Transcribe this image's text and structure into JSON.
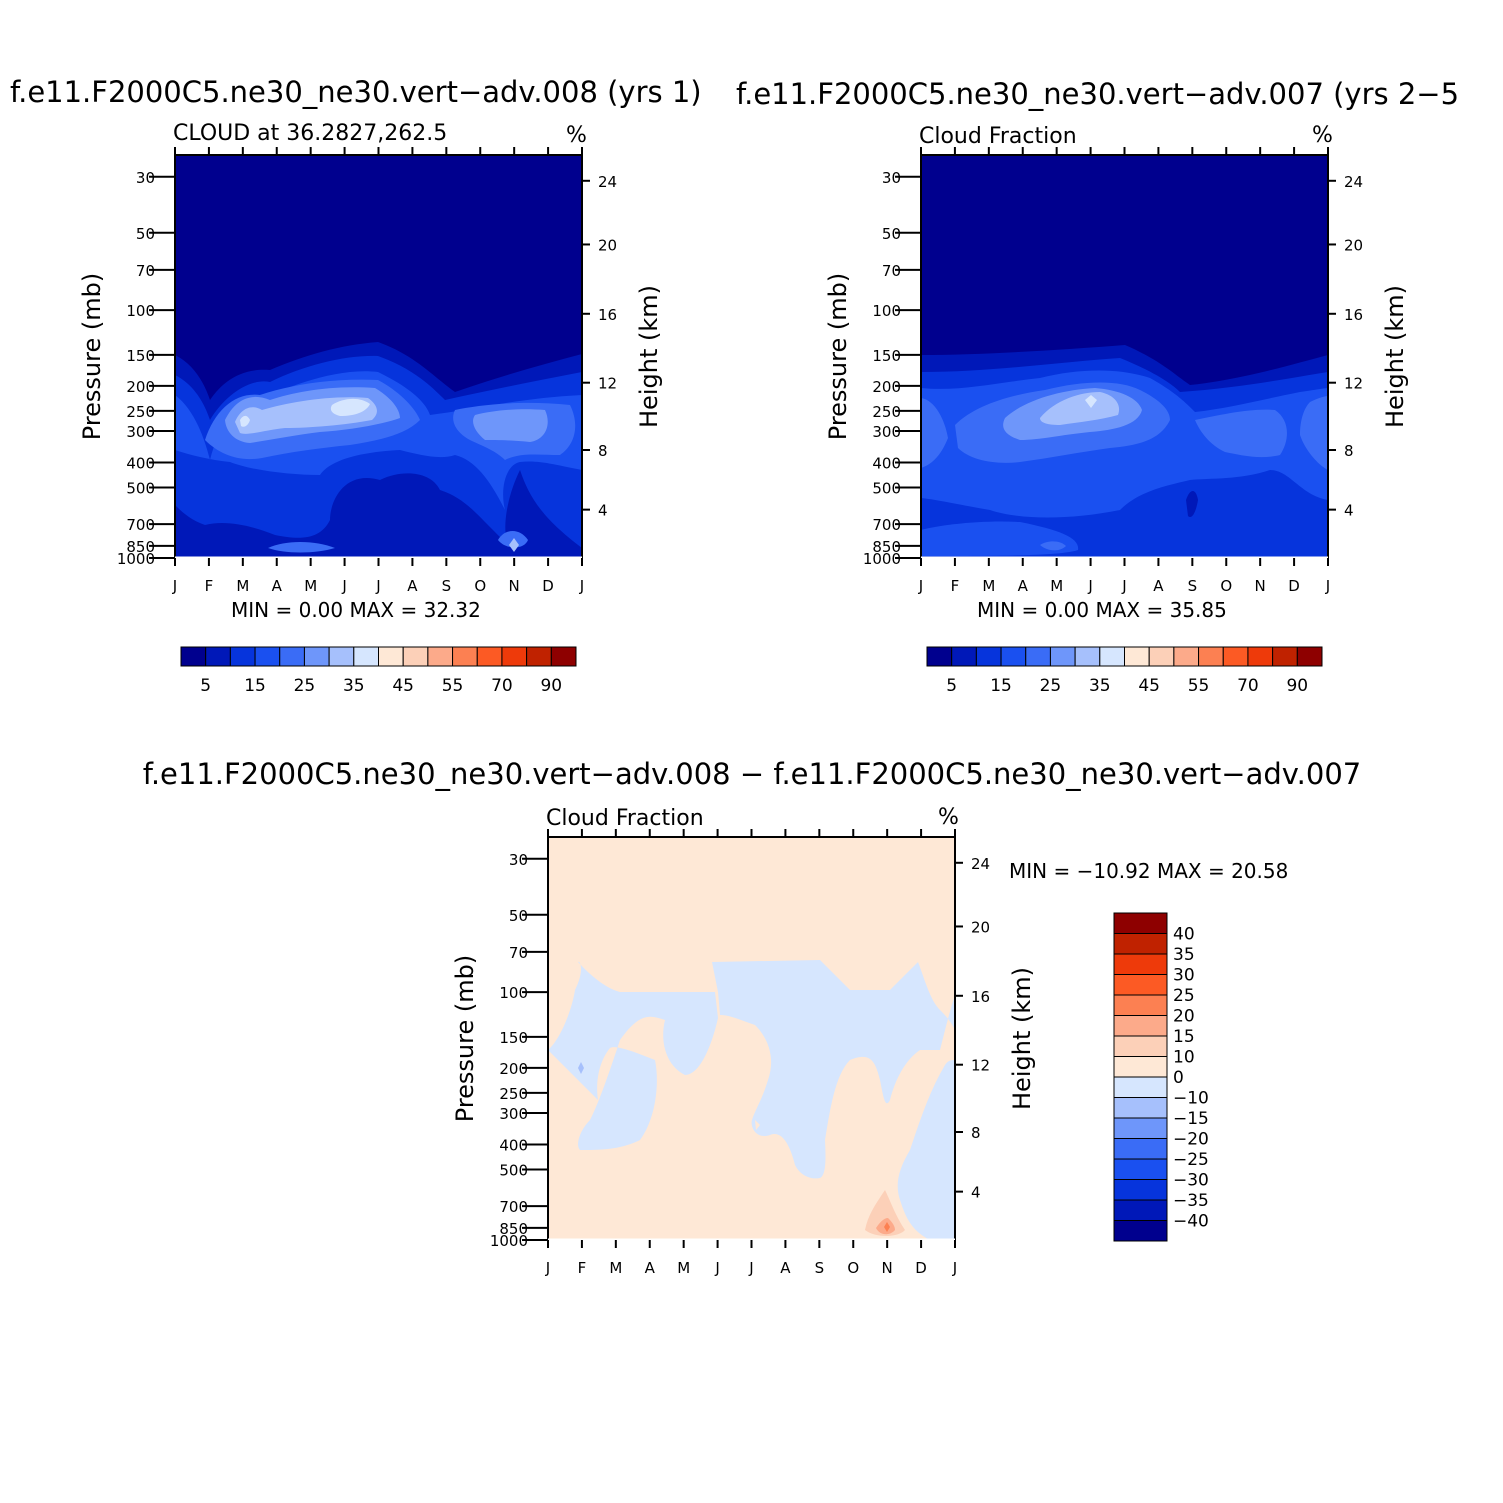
{
  "figure": {
    "panels": [
      {
        "title": "f.e11.F2000C5.ne30_ne30.vert−adv.008 (yrs 1)",
        "left_label": "CLOUD at 36.2827,262.5",
        "units": "%",
        "stats": "MIN =     0.00  MAX =    32.32"
      },
      {
        "title": "f.e11.F2000C5.ne30_ne30.vert−adv.007 (yrs 2−5",
        "left_label": "Cloud Fraction",
        "units": "%",
        "stats": "MIN =     0.00  MAX =    35.85"
      },
      {
        "title": "f.e11.F2000C5.ne30_ne30.vert−adv.008 − f.e11.F2000C5.ne30_ne30.vert−adv.007",
        "left_label": "Cloud Fraction",
        "units": "%",
        "stats": "MIN = −10.92  MAX =    20.58"
      }
    ]
  },
  "chart_data": [
    {
      "type": "heatmap",
      "title": "f.e11.F2000C5.ne30_ne30.vert−adv.008 (yrs 1)",
      "subtitle": "CLOUD at 36.2827,262.5",
      "units": "%",
      "xlabel": "",
      "ylabel": "Pressure (mb)",
      "ylabel_right": "Height (km)",
      "x_ticks": [
        "J",
        "F",
        "M",
        "A",
        "M",
        "J",
        "J",
        "A",
        "S",
        "O",
        "N",
        "D",
        "J"
      ],
      "y_ticks": [
        "30",
        "50",
        "70",
        "100",
        "150",
        "200",
        "250",
        "300",
        "400",
        "500",
        "700",
        "850",
        "1000"
      ],
      "y_ticks_right": [
        "24",
        "20",
        "16",
        "12",
        "8",
        "4"
      ],
      "min": 0.0,
      "max": 32.32,
      "colorbar_labels": [
        "5",
        "15",
        "25",
        "35",
        "45",
        "55",
        "70",
        "90"
      ],
      "colorbar_colors": [
        "#00008e",
        "#0018b8",
        "#0634dc",
        "#1a50f0",
        "#3a6cf6",
        "#6e96fa",
        "#a6c0fc",
        "#d6e6fe",
        "#fee8d6",
        "#fcd0b8",
        "#fcaa8a",
        "#fc8052",
        "#fc5a24",
        "#ee3a0a",
        "#c02200",
        "#8e0000"
      ],
      "peaks": [
        {
          "month": "Mar",
          "pressure_mb": 280,
          "value": 32.32
        },
        {
          "month": "Jun",
          "pressure_mb": 240,
          "value": 30
        },
        {
          "month": "Nov",
          "pressure_mb": 850,
          "value": 28
        }
      ]
    },
    {
      "type": "heatmap",
      "title": "f.e11.F2000C5.ne30_ne30.vert−adv.007 (yrs 2−5",
      "subtitle": "Cloud Fraction",
      "units": "%",
      "xlabel": "",
      "ylabel": "Pressure (mb)",
      "ylabel_right": "Height (km)",
      "x_ticks": [
        "J",
        "F",
        "M",
        "A",
        "M",
        "J",
        "J",
        "A",
        "S",
        "O",
        "N",
        "D",
        "J"
      ],
      "y_ticks": [
        "30",
        "50",
        "70",
        "100",
        "150",
        "200",
        "250",
        "300",
        "400",
        "500",
        "700",
        "850",
        "1000"
      ],
      "y_ticks_right": [
        "24",
        "20",
        "16",
        "12",
        "8",
        "4"
      ],
      "min": 0.0,
      "max": 35.85,
      "colorbar_labels": [
        "5",
        "15",
        "25",
        "35",
        "45",
        "55",
        "70",
        "90"
      ],
      "colorbar_colors": [
        "#00008e",
        "#0018b8",
        "#0634dc",
        "#1a50f0",
        "#3a6cf6",
        "#6e96fa",
        "#a6c0fc",
        "#d6e6fe",
        "#fee8d6",
        "#fcd0b8",
        "#fcaa8a",
        "#fc8052",
        "#fc5a24",
        "#ee3a0a",
        "#c02200",
        "#8e0000"
      ],
      "peaks": [
        {
          "month": "Jun",
          "pressure_mb": 250,
          "value": 35.85
        }
      ]
    },
    {
      "type": "heatmap",
      "title": "f.e11.F2000C5.ne30_ne30.vert−adv.008 − f.e11.F2000C5.ne30_ne30.vert−adv.007",
      "subtitle": "Cloud Fraction",
      "units": "%",
      "xlabel": "",
      "ylabel": "Pressure (mb)",
      "ylabel_right": "Height (km)",
      "x_ticks": [
        "J",
        "F",
        "M",
        "A",
        "M",
        "J",
        "J",
        "A",
        "S",
        "O",
        "N",
        "D",
        "J"
      ],
      "y_ticks": [
        "30",
        "50",
        "70",
        "100",
        "150",
        "200",
        "250",
        "300",
        "400",
        "500",
        "700",
        "850",
        "1000"
      ],
      "y_ticks_right": [
        "24",
        "20",
        "16",
        "12",
        "8",
        "4"
      ],
      "min": -10.92,
      "max": 20.58,
      "colorbar_labels": [
        "40",
        "35",
        "30",
        "25",
        "20",
        "15",
        "10",
        "0",
        "−10",
        "−15",
        "−20",
        "−25",
        "−30",
        "−35",
        "−40"
      ],
      "colorbar_colors": [
        "#8e0000",
        "#c02200",
        "#ee3a0a",
        "#fc5a24",
        "#fc8052",
        "#fcaa8a",
        "#fcd0b8",
        "#fee8d6",
        "#d6e6fe",
        "#a6c0fc",
        "#6e96fa",
        "#3a6cf6",
        "#1a50f0",
        "#0634dc",
        "#0018b8",
        "#00008e"
      ],
      "peaks": [
        {
          "month": "Nov",
          "pressure_mb": 850,
          "value": 20.58
        }
      ]
    }
  ]
}
